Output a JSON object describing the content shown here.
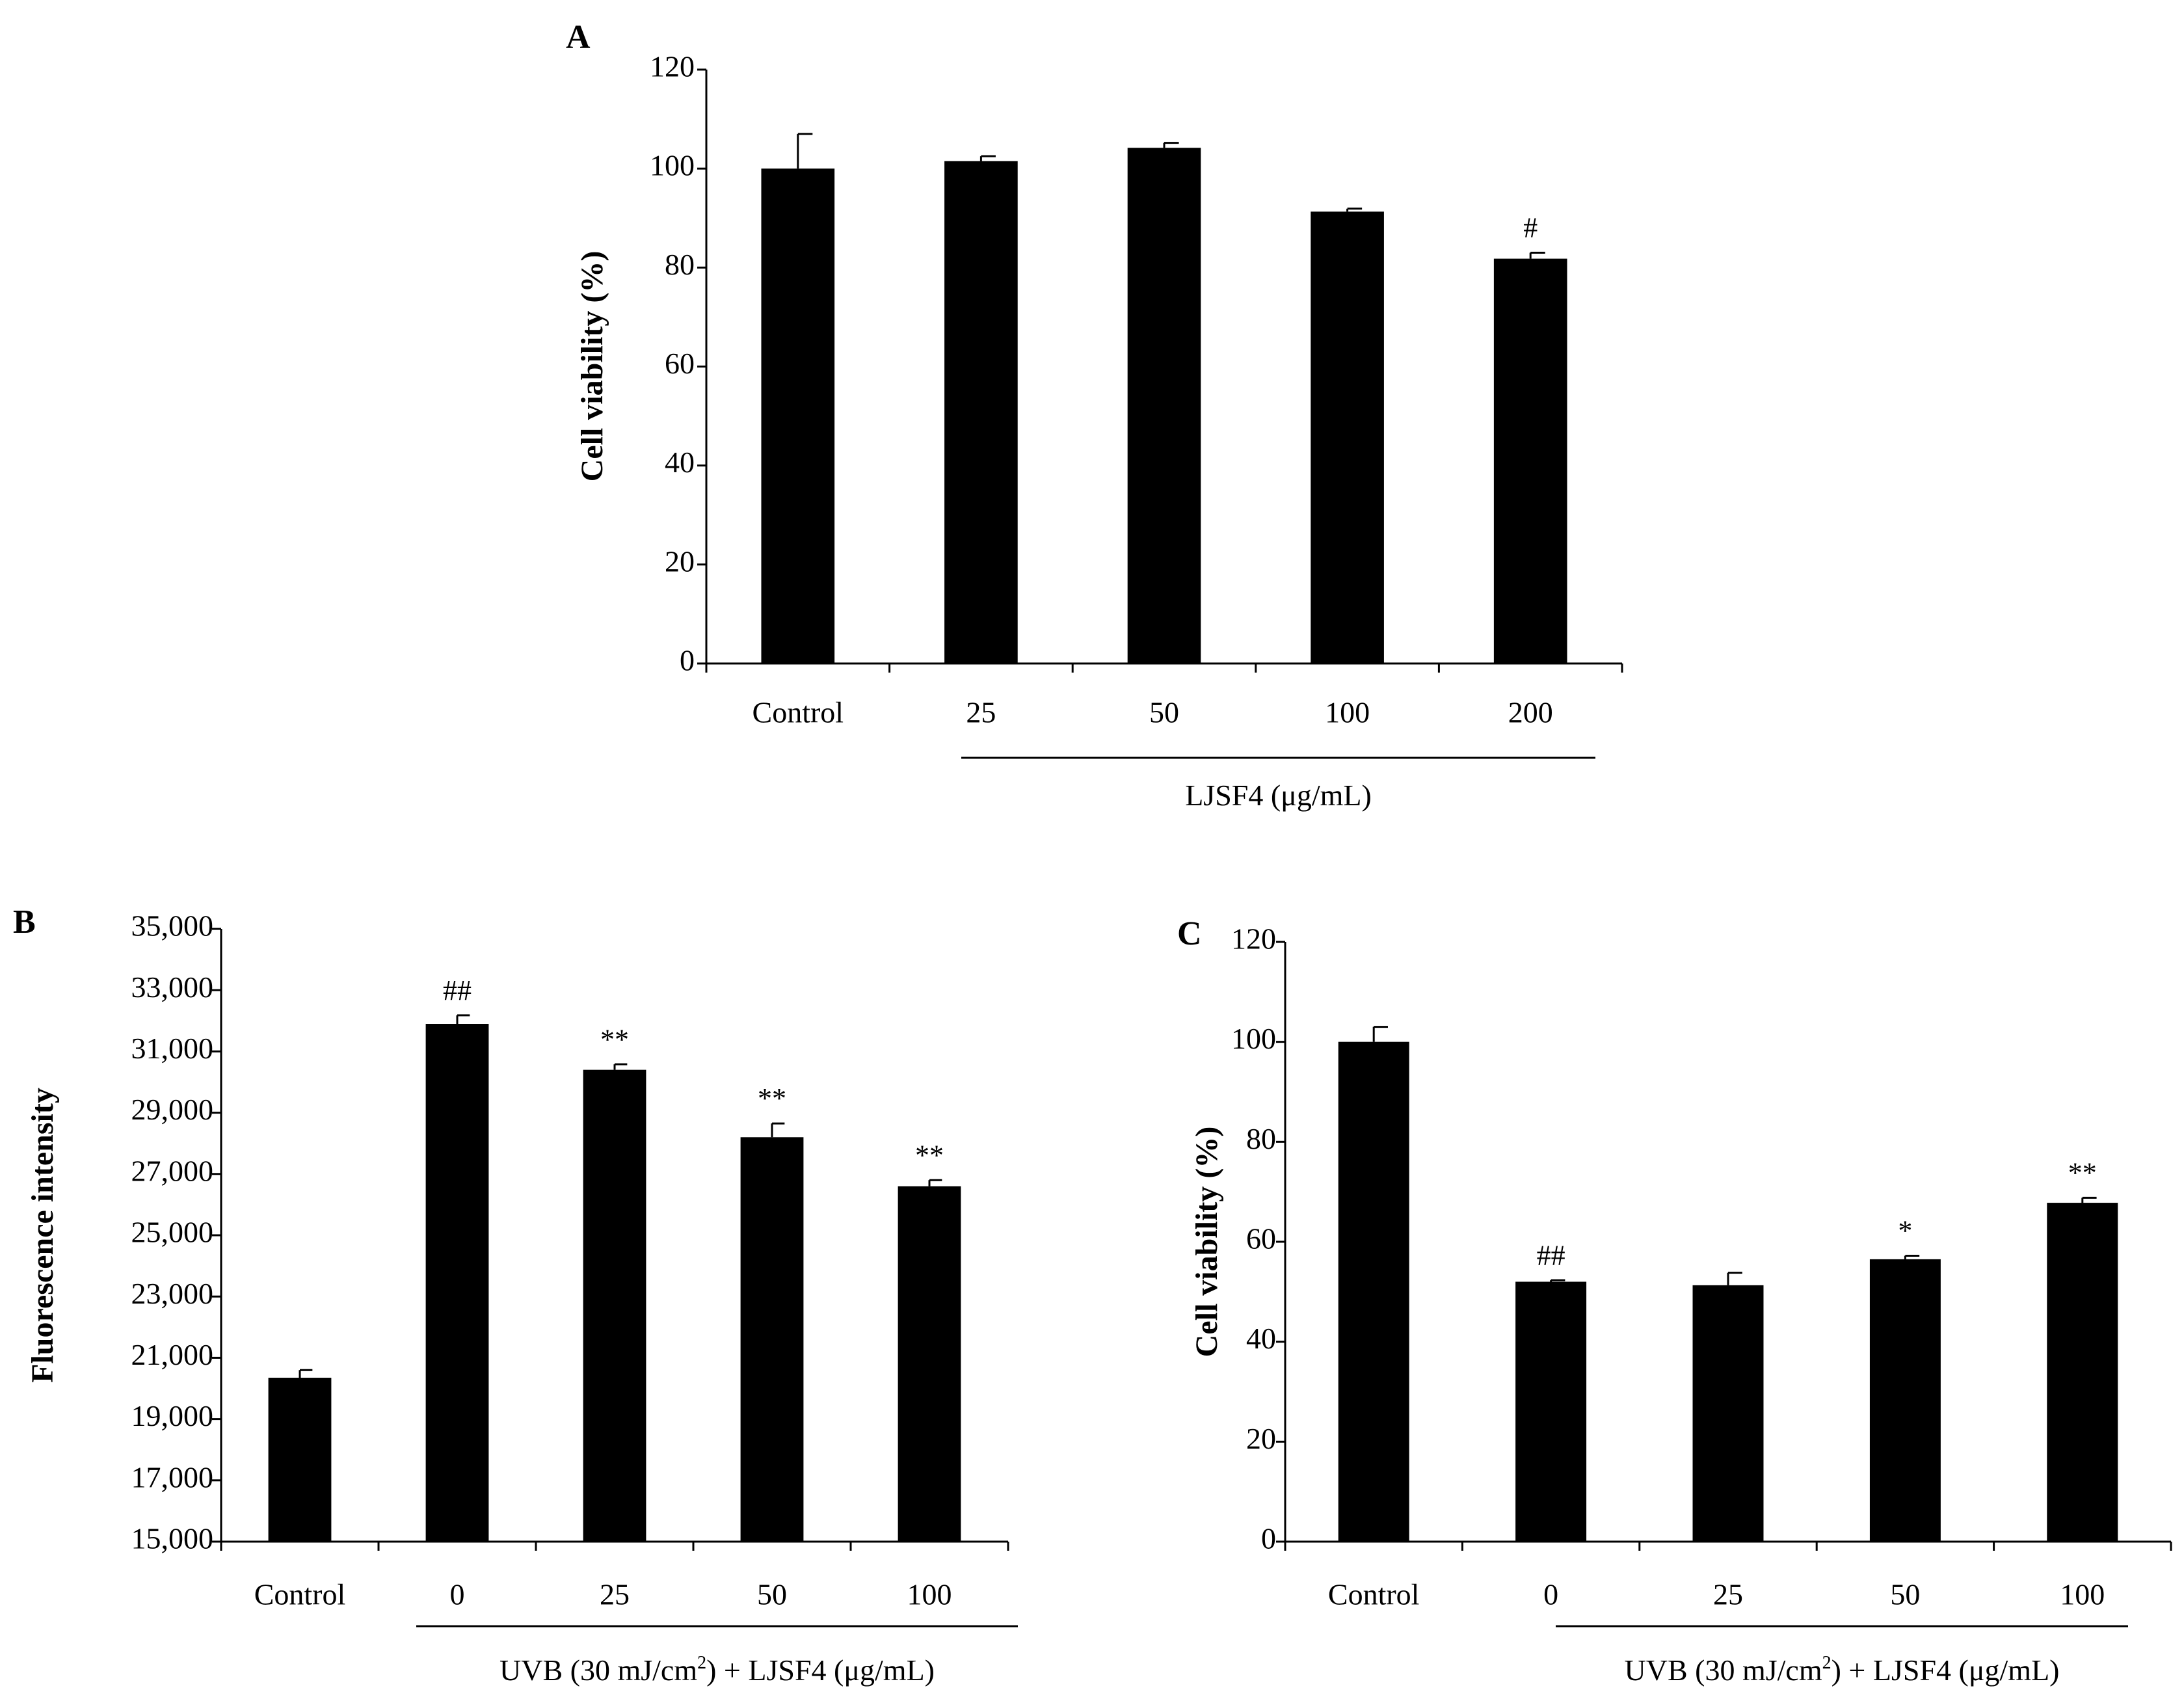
{
  "chart_data": [
    {
      "panel_label": "A",
      "type": "bar",
      "ylabel": "Cell viability (%)",
      "ylim": [
        0,
        120
      ],
      "ytick_step": 20,
      "ytick_labels": [
        "0",
        "20",
        "40",
        "60",
        "80",
        "100",
        "120"
      ],
      "categories": [
        "Control",
        "25",
        "50",
        "100",
        "200"
      ],
      "values": [
        100,
        101.5,
        104.2,
        91.3,
        81.8
      ],
      "errors": [
        7,
        1,
        1,
        0.6,
        1.2
      ],
      "significance": [
        "",
        "",
        "",
        "",
        "#"
      ],
      "group_label": {
        "text": "LJSF4 (μg/mL)",
        "sup": "",
        "rest": "",
        "spans_categories": [
          1,
          4
        ]
      },
      "bar_color": "#000000"
    },
    {
      "panel_label": "B",
      "type": "bar",
      "ylabel": "Fluorescence intensity",
      "ylim": [
        15000,
        35000
      ],
      "ytick_step": 2000,
      "ytick_labels": [
        "15,000",
        "17,000",
        "19,000",
        "21,000",
        "23,000",
        "25,000",
        "27,000",
        "29,000",
        "31,000",
        "33,000",
        "35,000"
      ],
      "categories": [
        "Control",
        "0",
        "25",
        "50",
        "100"
      ],
      "values": [
        20350,
        31900,
        30400,
        28200,
        26600
      ],
      "errors": [
        250,
        280,
        180,
        450,
        200
      ],
      "significance": [
        "",
        "##",
        "**",
        "**",
        "**"
      ],
      "group_label": {
        "text": "UVB (30 mJ/cm",
        "sup": "2",
        "rest": ")  + LJSF4 (μg/mL)",
        "spans_categories": [
          1,
          4
        ]
      },
      "bar_color": "#000000"
    },
    {
      "panel_label": "C",
      "type": "bar",
      "ylabel": "Cell viability (%)",
      "ylim": [
        0,
        120
      ],
      "ytick_step": 20,
      "ytick_labels": [
        "0",
        "20",
        "40",
        "60",
        "80",
        "100",
        "120"
      ],
      "categories": [
        "Control",
        "0",
        "25",
        "50",
        "100"
      ],
      "values": [
        100,
        52,
        51.3,
        56.5,
        67.8
      ],
      "errors": [
        3,
        0.3,
        2.5,
        0.7,
        1
      ],
      "significance": [
        "",
        "##",
        "",
        "*",
        "**"
      ],
      "group_label": {
        "text": "UVB (30 mJ/cm",
        "sup": "2",
        "rest": ")  + LJSF4 (μg/mL)",
        "spans_categories": [
          1,
          4
        ]
      },
      "bar_color": "#000000"
    }
  ]
}
